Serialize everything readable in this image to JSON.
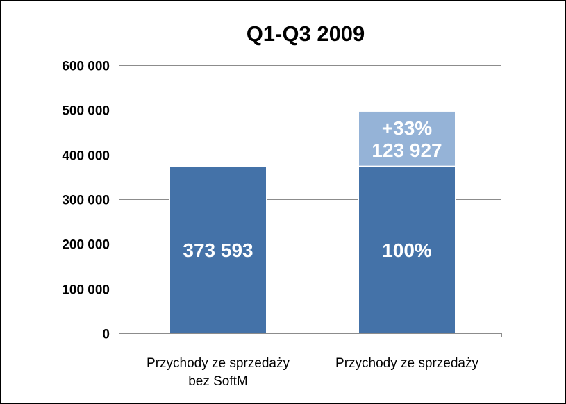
{
  "chart_data": {
    "type": "bar",
    "stacked": true,
    "title": "Q1-Q3 2009",
    "categories": [
      [
        "Przychody ze sprzedaży",
        "bez SoftM"
      ],
      [
        "Przychody ze sprzedaży"
      ]
    ],
    "ylim": [
      0,
      600000
    ],
    "yticks": [
      0,
      100000,
      200000,
      300000,
      400000,
      500000,
      600000
    ],
    "ytick_labels": [
      "0",
      "100 000",
      "200 000",
      "300 000",
      "400 000",
      "500 000",
      "600 000"
    ],
    "grid": true,
    "series": [
      {
        "values": [
          373593,
          373593
        ],
        "labels": [
          [
            "373 593"
          ],
          [
            "100%"
          ]
        ],
        "color": "#4472a8"
      },
      {
        "values": [
          0,
          123927
        ],
        "labels": [
          [],
          [
            "+33%",
            "123 927"
          ]
        ],
        "color": "#95b3d7"
      }
    ]
  }
}
